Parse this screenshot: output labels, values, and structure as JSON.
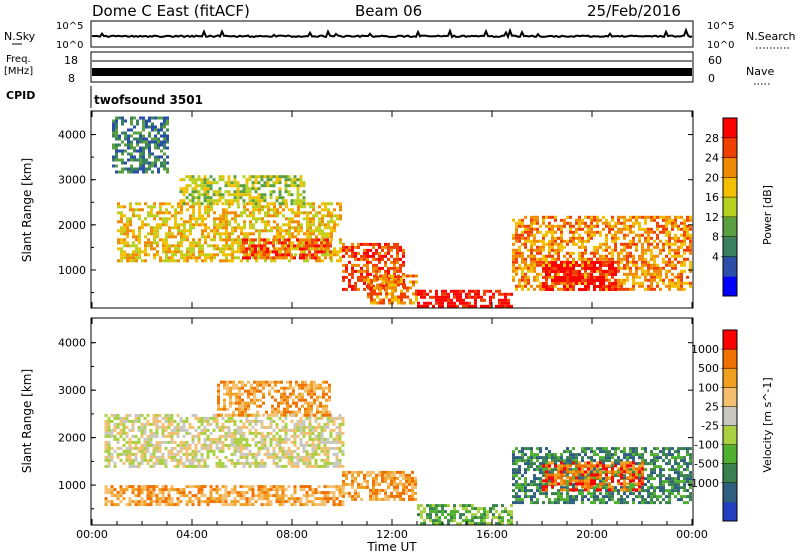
{
  "header": {
    "station": "Dome C East (fitACF)",
    "beam": "Beam 06",
    "date": "25/Feb/2016"
  },
  "top_panels": {
    "nsky_label": "N.Sky",
    "nsky_ticks": [
      "10^5",
      "10^0"
    ],
    "nsearch_label": "N.Search",
    "nsearch_ticks": [
      "10^5",
      "10^0"
    ],
    "freq_label_1": "Freq.",
    "freq_label_2": "[MHz]",
    "freq_ticks": [
      "18",
      "8"
    ],
    "nave_label": "Nave",
    "nave_ticks": [
      "60",
      "0"
    ],
    "cpid_label": "CPID",
    "cpid_value": "twofsound 3501"
  },
  "chart_data": [
    {
      "type": "heatmap",
      "name": "power",
      "ylabel": "Slant Range [km]",
      "yticks": [
        1000,
        2000,
        3000,
        4000
      ],
      "ylim": [
        180,
        4500
      ],
      "xlim_hours": [
        0,
        24
      ],
      "colorbar": {
        "label": "Power [dB]",
        "ticks": [
          "28",
          "24",
          "20",
          "16",
          "12",
          "8",
          "4"
        ],
        "colors": [
          "#0000ff",
          "#2a4fa8",
          "#3a7f60",
          "#5aa040",
          "#b8d020",
          "#f2c000",
          "#f08a00",
          "#f04000",
          "#ff0000"
        ]
      },
      "regions": [
        {
          "t": [
            1.0,
            10.0
          ],
          "r": [
            1200,
            2500
          ],
          "level": 5
        },
        {
          "t": [
            3.5,
            8.5
          ],
          "r": [
            2500,
            3100
          ],
          "level": 4
        },
        {
          "t": [
            6.0,
            9.5
          ],
          "r": [
            1300,
            1700
          ],
          "level": 7
        },
        {
          "t": [
            10.0,
            12.5
          ],
          "r": [
            600,
            1600
          ],
          "level": 7
        },
        {
          "t": [
            11.0,
            13.0
          ],
          "r": [
            300,
            900
          ],
          "level": 6
        },
        {
          "t": [
            13.0,
            16.8
          ],
          "r": [
            200,
            560
          ],
          "level": 8
        },
        {
          "t": [
            16.8,
            24.0
          ],
          "r": [
            600,
            2200
          ],
          "level": 6
        },
        {
          "t": [
            18.0,
            21.0
          ],
          "r": [
            600,
            1200
          ],
          "level": 8
        },
        {
          "t": [
            0.8,
            3.0
          ],
          "r": [
            3200,
            4400
          ],
          "level": 2
        }
      ]
    },
    {
      "type": "heatmap",
      "name": "velocity",
      "ylabel": "Slant Range [km]",
      "yticks": [
        1000,
        2000,
        3000,
        4000
      ],
      "ylim": [
        180,
        4500
      ],
      "xlabel": "Time UT",
      "xticks": [
        "00:00",
        "04:00",
        "08:00",
        "12:00",
        "16:00",
        "20:00",
        "00:00"
      ],
      "colorbar": {
        "label": "Velocity [m s^-1]",
        "ticks": [
          "1000",
          "500",
          "100",
          "25",
          "-25",
          "-100",
          "-500",
          "-1000"
        ],
        "colors": [
          "#2040c0",
          "#2f5f80",
          "#3a8050",
          "#4fb030",
          "#a8d040",
          "#c8c8c0",
          "#f4c070",
          "#f0a020",
          "#f07000",
          "#ff0000"
        ]
      },
      "regions": [
        {
          "t": [
            0.5,
            10.0
          ],
          "r": [
            1400,
            2500
          ],
          "level": 5
        },
        {
          "t": [
            0.5,
            10.0
          ],
          "r": [
            600,
            1000
          ],
          "level": 7
        },
        {
          "t": [
            5.0,
            9.5
          ],
          "r": [
            2500,
            3200
          ],
          "level": 7
        },
        {
          "t": [
            10.0,
            13.0
          ],
          "r": [
            700,
            1300
          ],
          "level": 7
        },
        {
          "t": [
            13.0,
            16.8
          ],
          "r": [
            200,
            600
          ],
          "level": 3
        },
        {
          "t": [
            16.8,
            24.0
          ],
          "r": [
            600,
            1800
          ],
          "level": 2
        },
        {
          "t": [
            18.0,
            22.0
          ],
          "r": [
            900,
            1500
          ],
          "level": 8
        }
      ]
    }
  ]
}
